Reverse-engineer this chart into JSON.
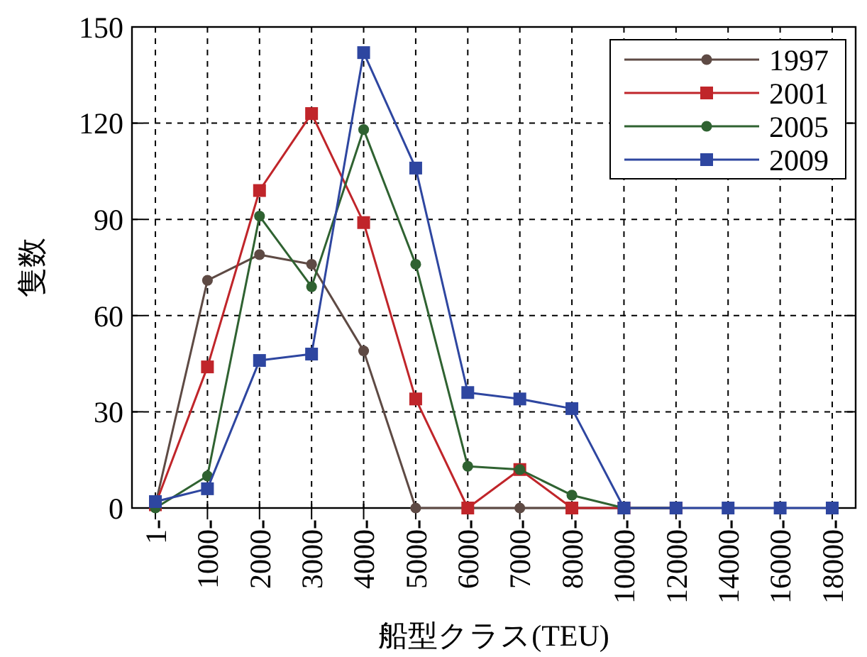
{
  "chart_data": {
    "type": "line",
    "xlabel": "船型クラス(TEU)",
    "ylabel": "隻数",
    "categories": [
      "1-",
      "1000-",
      "2000-",
      "3000-",
      "4000-",
      "5000-",
      "6000-",
      "7000-",
      "8000-",
      "10000-",
      "12000-",
      "14000-",
      "16000-",
      "18000-"
    ],
    "ylim": [
      0,
      150
    ],
    "yticks": [
      0,
      30,
      60,
      90,
      120,
      150
    ],
    "grid": true,
    "legend": "top right",
    "series": [
      {
        "name": "1997",
        "color": "#5e4a44",
        "marker": "circle",
        "values": [
          1,
          71,
          79,
          76,
          49,
          0,
          0,
          0,
          0,
          0,
          0,
          null,
          null,
          null
        ]
      },
      {
        "name": "2001",
        "color": "#c0252a",
        "marker": "square",
        "values": [
          1,
          44,
          99,
          123,
          89,
          34,
          0,
          12,
          0,
          0,
          0,
          null,
          null,
          null
        ]
      },
      {
        "name": "2005",
        "color": "#2f6231",
        "marker": "circle",
        "values": [
          0,
          10,
          91,
          69,
          118,
          76,
          13,
          12,
          4,
          0,
          0,
          null,
          null,
          null
        ]
      },
      {
        "name": "2009",
        "color": "#2e46a0",
        "marker": "square",
        "values": [
          2,
          6,
          46,
          48,
          142,
          106,
          36,
          34,
          31,
          0,
          0,
          0,
          0,
          0
        ]
      }
    ]
  }
}
